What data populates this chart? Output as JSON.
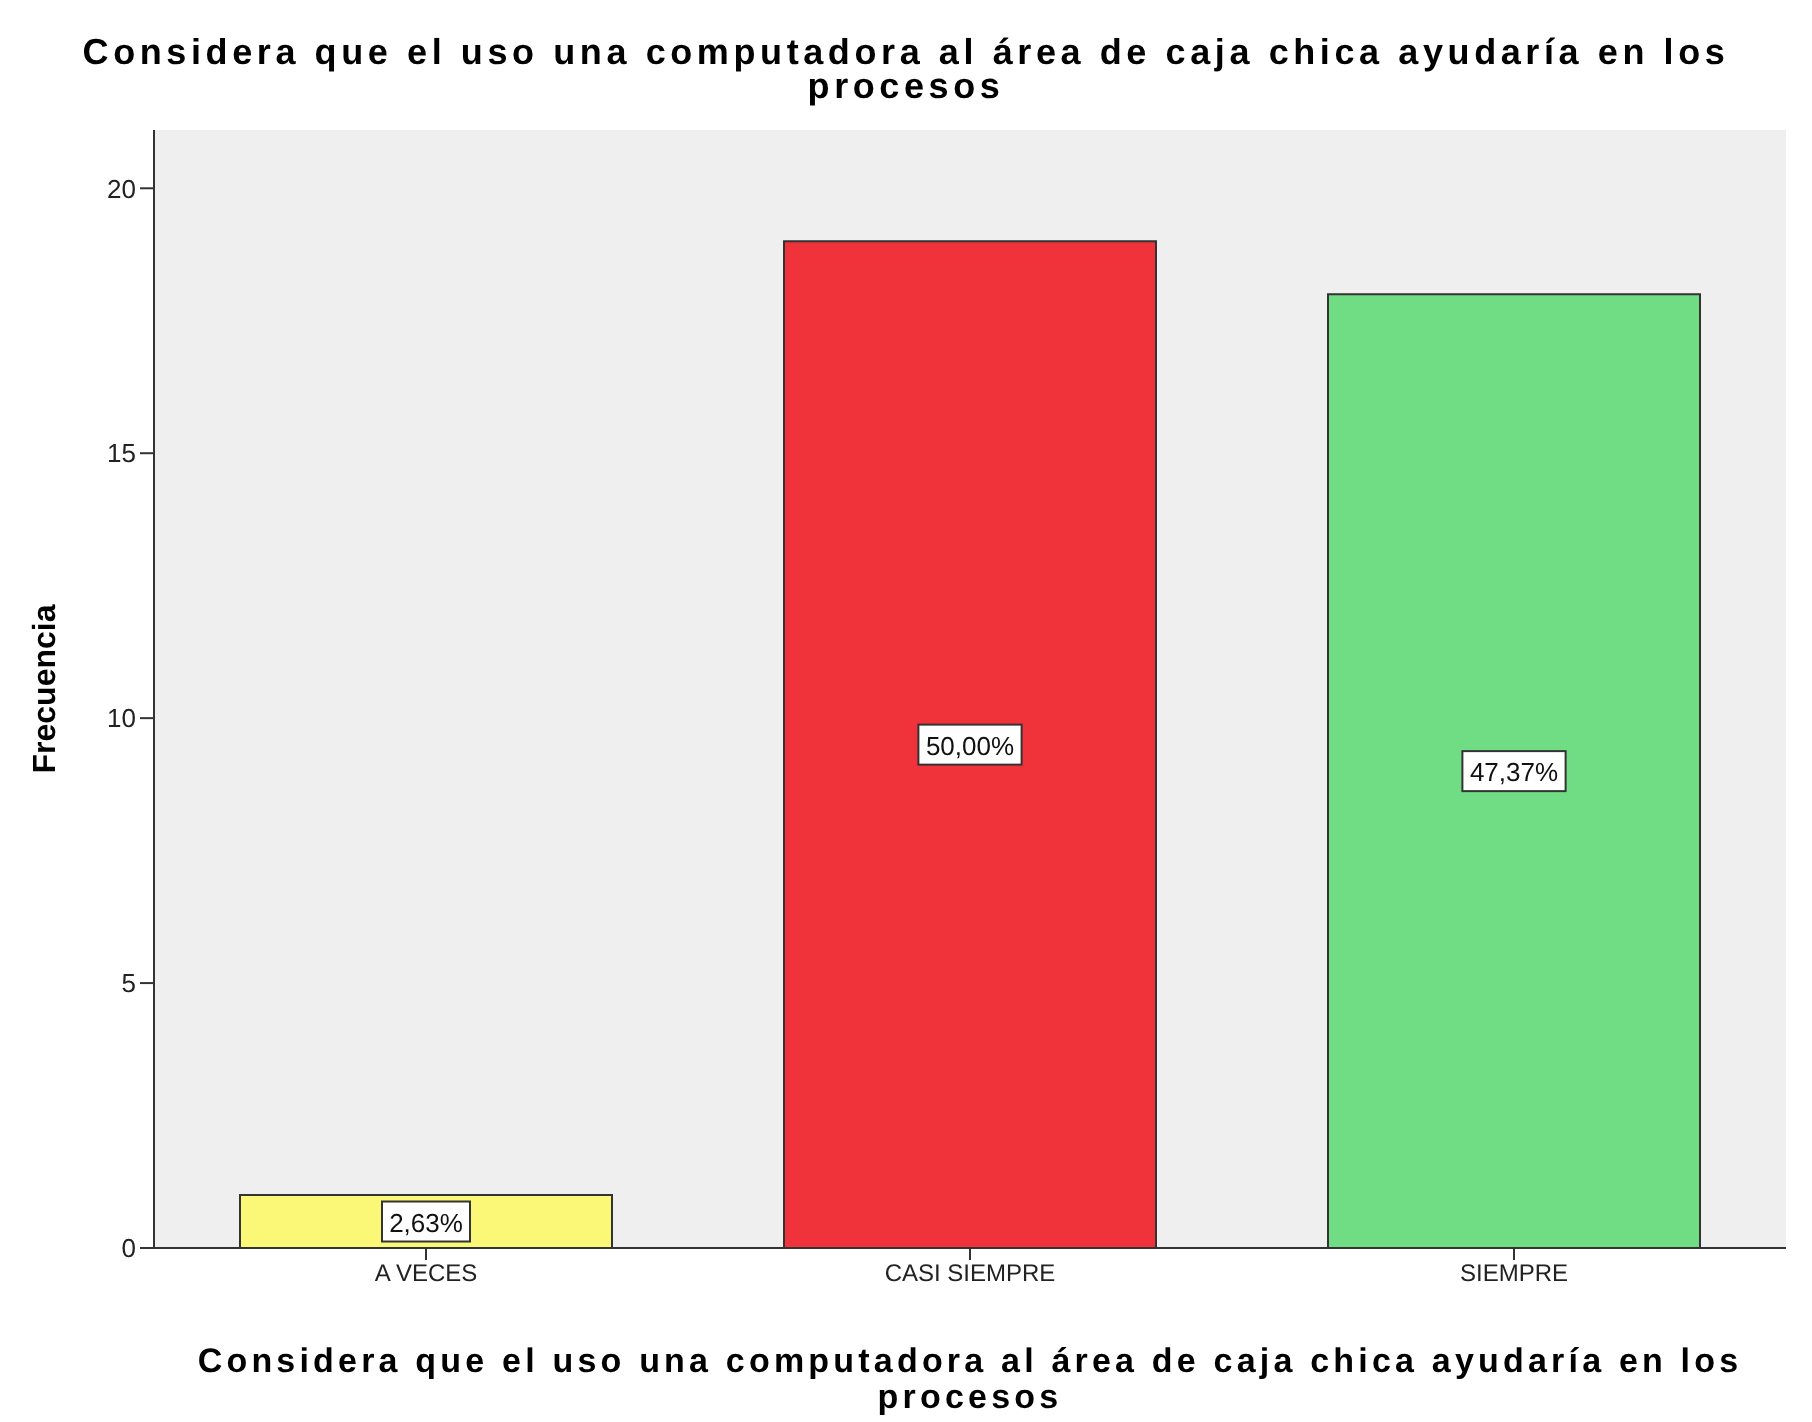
{
  "chart_data": {
    "type": "bar",
    "title": "Considera que el uso una computadora al área de caja chica ayudaría en los procesos",
    "xlabel": "Considera que el uso una computadora al área de caja chica ayudaría en los procesos",
    "ylabel": "Frecuencia",
    "categories": [
      "A VECES",
      "CASI SIEMPRE",
      "SIEMPRE"
    ],
    "values": [
      1,
      19,
      18
    ],
    "colors": [
      "#fbf877",
      "#f0323a",
      "#70dc84"
    ],
    "annotations": [
      "2,63%",
      "50,00%",
      "47,37%"
    ],
    "ylim": [
      0,
      21.1
    ],
    "yticks": [
      0,
      5,
      10,
      15,
      20
    ],
    "grid": false
  }
}
